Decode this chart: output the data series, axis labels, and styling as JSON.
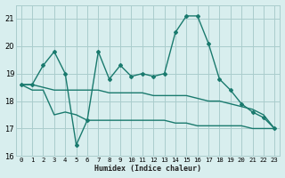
{
  "xlabel": "Humidex (Indice chaleur)",
  "x_ticks": [
    0,
    1,
    2,
    3,
    4,
    5,
    6,
    7,
    8,
    9,
    10,
    11,
    12,
    13,
    14,
    15,
    16,
    17,
    18,
    19,
    20,
    21,
    22,
    23
  ],
  "ylim": [
    16,
    21.5
  ],
  "xlim": [
    -0.5,
    23.5
  ],
  "y_ticks": [
    16,
    17,
    18,
    19,
    20,
    21
  ],
  "bg_color": "#d8eeee",
  "grid_color": "#aacccc",
  "line_color": "#1a7a6e",
  "series1": {
    "x": [
      0,
      1,
      2,
      3,
      4,
      5,
      6,
      7,
      8,
      9,
      10,
      11,
      12,
      13,
      14,
      15,
      16,
      17,
      18,
      19,
      20,
      21,
      22,
      23
    ],
    "y": [
      18.6,
      18.6,
      19.3,
      19.8,
      19.0,
      16.4,
      17.3,
      19.8,
      18.8,
      19.3,
      18.9,
      19.0,
      18.9,
      19.0,
      20.5,
      21.1,
      21.1,
      20.1,
      18.8,
      18.4,
      17.9,
      17.6,
      17.4,
      17.0
    ]
  },
  "series2": {
    "x": [
      0,
      1,
      2,
      3,
      4,
      5,
      6,
      7,
      8,
      9,
      10,
      11,
      12,
      13,
      14,
      15,
      16,
      17,
      18,
      19,
      20,
      21,
      22,
      23
    ],
    "y": [
      18.6,
      18.4,
      18.4,
      17.5,
      17.6,
      17.5,
      17.3,
      17.3,
      17.3,
      17.3,
      17.3,
      17.3,
      17.3,
      17.3,
      17.2,
      17.2,
      17.1,
      17.1,
      17.1,
      17.1,
      17.1,
      17.0,
      17.0,
      17.0
    ]
  },
  "series3": {
    "x": [
      0,
      1,
      2,
      3,
      4,
      5,
      6,
      7,
      8,
      9,
      10,
      11,
      12,
      13,
      14,
      15,
      16,
      17,
      18,
      19,
      20,
      21,
      22,
      23
    ],
    "y": [
      18.6,
      18.6,
      18.5,
      18.4,
      18.4,
      18.4,
      18.4,
      18.4,
      18.3,
      18.3,
      18.3,
      18.3,
      18.2,
      18.2,
      18.2,
      18.2,
      18.1,
      18.0,
      18.0,
      17.9,
      17.8,
      17.7,
      17.5,
      17.0
    ]
  }
}
